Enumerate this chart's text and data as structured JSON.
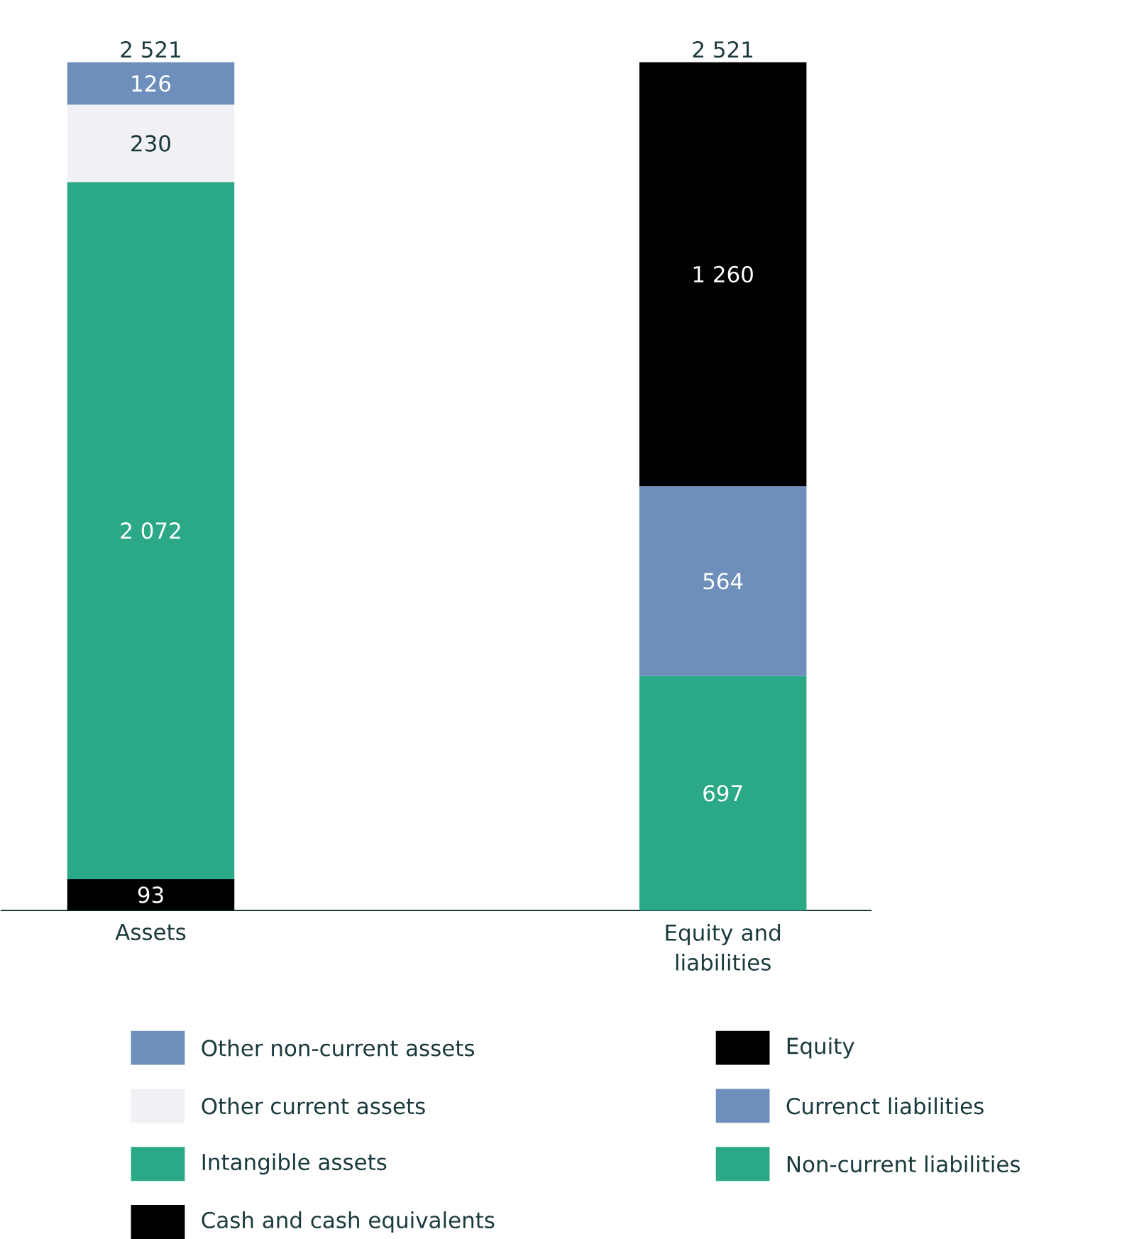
{
  "chart_data": {
    "type": "bar",
    "stacked": true,
    "categories": [
      "Assets",
      "Equity and liabilities"
    ],
    "totals": [
      "2 521",
      "2 521"
    ],
    "legend": "bottom",
    "series": [
      {
        "name": "Cash and cash equivalents",
        "color": "#000000",
        "values": [
          93,
          null
        ],
        "value_labels": [
          "93",
          null
        ]
      },
      {
        "name": "Intangible assets",
        "color": "#2ba886",
        "values": [
          2072,
          null
        ],
        "value_labels": [
          "2 072",
          null
        ]
      },
      {
        "name": "Other current assets",
        "color": "#f1f1f5",
        "values": [
          230,
          null
        ],
        "value_labels": [
          "230",
          null
        ]
      },
      {
        "name": "Other non-current assets",
        "color": "#6e8ebb",
        "values": [
          126,
          null
        ],
        "value_labels": [
          "126",
          null
        ]
      },
      {
        "name": "Non-current liabilities",
        "color": "#2ba886",
        "values": [
          null,
          697
        ],
        "value_labels": [
          null,
          "697"
        ]
      },
      {
        "name": "Currenct liabilities",
        "color": "#6e8ebb",
        "values": [
          null,
          564
        ],
        "value_labels": [
          null,
          "564"
        ]
      },
      {
        "name": "Equity",
        "color": "#000000",
        "values": [
          null,
          1260
        ],
        "value_labels": [
          null,
          "1 260"
        ]
      }
    ]
  }
}
